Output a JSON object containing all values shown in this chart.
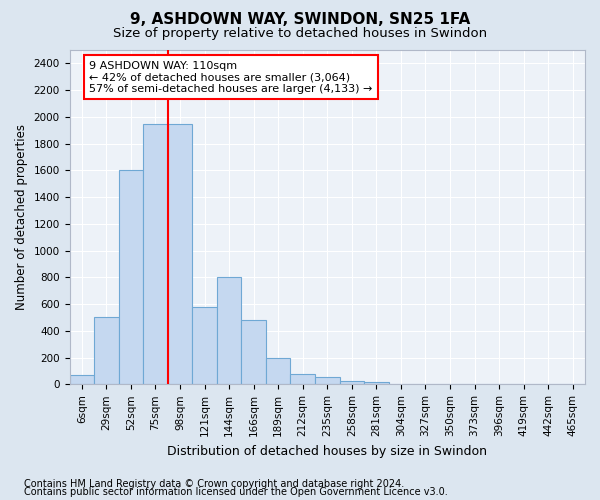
{
  "title": "9, ASHDOWN WAY, SWINDON, SN25 1FA",
  "subtitle": "Size of property relative to detached houses in Swindon",
  "xlabel": "Distribution of detached houses by size in Swindon",
  "ylabel": "Number of detached properties",
  "footer1": "Contains HM Land Registry data © Crown copyright and database right 2024.",
  "footer2": "Contains public sector information licensed under the Open Government Licence v3.0.",
  "categories": [
    "6sqm",
    "29sqm",
    "52sqm",
    "75sqm",
    "98sqm",
    "121sqm",
    "144sqm",
    "166sqm",
    "189sqm",
    "212sqm",
    "235sqm",
    "258sqm",
    "281sqm",
    "304sqm",
    "327sqm",
    "350sqm",
    "373sqm",
    "396sqm",
    "419sqm",
    "442sqm",
    "465sqm"
  ],
  "bar_heights": [
    70,
    500,
    1600,
    1950,
    1950,
    580,
    800,
    480,
    195,
    80,
    55,
    25,
    15,
    0,
    0,
    0,
    0,
    0,
    0,
    0,
    0
  ],
  "bar_color": "#c5d8f0",
  "bar_edge_color": "#6fa8d4",
  "vline_position": 4.5,
  "vline_color": "red",
  "annotation_text": "9 ASHDOWN WAY: 110sqm\n← 42% of detached houses are smaller (3,064)\n57% of semi-detached houses are larger (4,133) →",
  "annotation_box_color": "white",
  "annotation_box_edge_color": "red",
  "ylim": [
    0,
    2500
  ],
  "yticks": [
    0,
    200,
    400,
    600,
    800,
    1000,
    1200,
    1400,
    1600,
    1800,
    2000,
    2200,
    2400
  ],
  "background_color": "#dce6f0",
  "plot_bg_color": "#edf2f8",
  "grid_color": "#ffffff",
  "title_fontsize": 11,
  "subtitle_fontsize": 9.5,
  "xlabel_fontsize": 9,
  "ylabel_fontsize": 8.5,
  "tick_fontsize": 7.5,
  "annotation_fontsize": 8,
  "footer_fontsize": 7
}
